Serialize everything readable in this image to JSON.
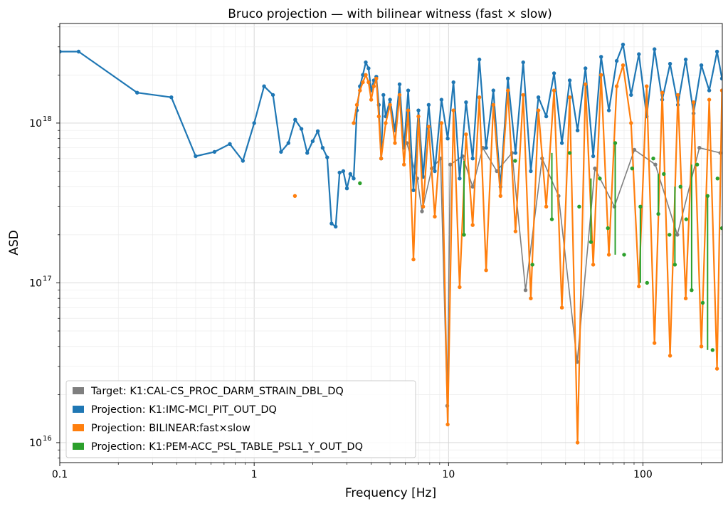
{
  "chart_data": {
    "type": "line",
    "title": "Bruco projection — with bilinear witness (fast × slow)",
    "xlabel": "Frequency [Hz]",
    "ylabel": "ASD",
    "xscale": "log",
    "yscale": "log",
    "xlim": [
      0.1,
      256
    ],
    "ylim": [
      7500000000000000.0,
      4.2e+18
    ],
    "grid": true,
    "legend_position": "lower-left",
    "x_ticks": [
      {
        "value": 0.1,
        "label": "0.1"
      },
      {
        "value": 1,
        "label": "1"
      },
      {
        "value": 10,
        "label": "10"
      },
      {
        "value": 100,
        "label": "100"
      }
    ],
    "y_ticks": [
      {
        "value": 1e+16,
        "base": "10",
        "exp": "16"
      },
      {
        "value": 1e+17,
        "base": "10",
        "exp": "17"
      },
      {
        "value": 1e+18,
        "base": "10",
        "exp": "18"
      }
    ],
    "series": [
      {
        "name": "Target: K1:CAL-CS_PROC_DARM_STRAIN_DBL_DQ",
        "color": "#7f7f7f",
        "x": [
          6.1,
          6.9,
          7.3,
          8.2,
          9.1,
          9.85,
          10.2,
          11.8,
          13.3,
          15.0,
          17.7,
          21.2,
          24.9,
          30.3,
          36.8,
          45.9,
          56.6,
          71.3,
          90.4,
          115.8,
          150.3,
          195.2,
          250.0
        ],
        "y": [
          7.5e+17,
          4.5e+17,
          2.8e+17,
          5.2e+17,
          6e+17,
          1.7e+16,
          5.5e+17,
          6.2e+17,
          4e+17,
          7e+17,
          5e+17,
          6.5e+17,
          9e+16,
          6e+17,
          3.5e+17,
          3.2e+16,
          5.2e+17,
          3e+17,
          6.8e+17,
          5.5e+17,
          2e+17,
          7e+17,
          6.5e+17
        ]
      },
      {
        "name": "Projection: K1:IMC-MCI_PIT_OUT_DQ",
        "color": "#1f77b4",
        "x": [
          0.1,
          0.125,
          0.25,
          0.375,
          0.5,
          0.625,
          0.75,
          0.875,
          1.0,
          1.125,
          1.25,
          1.375,
          1.5,
          1.625,
          1.75,
          1.875,
          2.0,
          2.125,
          2.25,
          2.375,
          2.5,
          2.625,
          2.75,
          2.875,
          3.0,
          3.125,
          3.25,
          3.375,
          3.5,
          3.625,
          3.75,
          3.875,
          4.0,
          4.125,
          4.25,
          4.375,
          4.5,
          4.625,
          4.75,
          5.0,
          5.3,
          5.6,
          5.9,
          6.2,
          6.6,
          7.0,
          7.4,
          7.9,
          8.5,
          9.2,
          9.9,
          10.6,
          11.4,
          12.3,
          13.3,
          14.4,
          15.6,
          17.0,
          18.5,
          20.2,
          22.1,
          24.2,
          26.5,
          29.0,
          31.8,
          34.9,
          38.3,
          42.0,
          46.1,
          50.6,
          55.5,
          60.9,
          66.8,
          73.3,
          79.0,
          86.9,
          95.3,
          104.5,
          114.6,
          125.7,
          137.9,
          151.3,
          166.0,
          182.1,
          199.8,
          219.2,
          240.5,
          255.0
        ],
        "y": [
          2.8e+18,
          2.8e+18,
          1.55e+18,
          1.45e+18,
          6.2e+17,
          6.6e+17,
          7.4e+17,
          5.8e+17,
          1e+18,
          1.7e+18,
          1.5e+18,
          6.6e+17,
          7.5e+17,
          1.05e+18,
          9.2e+17,
          6.5e+17,
          7.7e+17,
          8.9e+17,
          7e+17,
          6.1e+17,
          2.35e+17,
          2.25e+17,
          4.9e+17,
          5e+17,
          3.9e+17,
          4.8e+17,
          4.5e+17,
          1.2e+18,
          1.7e+18,
          2e+18,
          2.4e+18,
          2.2e+18,
          1.6e+18,
          1.85e+18,
          1.95e+18,
          1.3e+18,
          6e+17,
          1.5e+18,
          1.1e+18,
          1.4e+18,
          9e+17,
          1.75e+18,
          7e+17,
          1.6e+18,
          3.8e+17,
          1.2e+18,
          4.6e+17,
          1.3e+18,
          5e+17,
          1.4e+18,
          8e+17,
          1.8e+18,
          4.5e+17,
          1.35e+18,
          6e+17,
          2.5e+18,
          7e+17,
          1.6e+18,
          4e+17,
          1.9e+18,
          6.5e+17,
          2.4e+18,
          5e+17,
          1.45e+18,
          1.1e+18,
          2.05e+18,
          7.5e+17,
          1.85e+18,
          9e+17,
          2.2e+18,
          6.2e+17,
          2.6e+18,
          1.2e+18,
          2.45e+18,
          3.1e+18,
          1.5e+18,
          2.7e+18,
          1.1e+18,
          2.9e+18,
          1.4e+18,
          2.35e+18,
          1.3e+18,
          2.5e+18,
          1.15e+18,
          2.3e+18,
          1.6e+18,
          2.8e+18,
          1.9e+18
        ]
      },
      {
        "name": "Projection: BILINEAR:fast×slow",
        "color": "#ff7f0e",
        "x": [
          1.62,
          3.25,
          3.375,
          3.5,
          3.625,
          3.75,
          3.875,
          4.0,
          4.125,
          4.25,
          4.375,
          4.5,
          4.75,
          5.0,
          5.3,
          5.6,
          5.9,
          6.2,
          6.6,
          7.0,
          7.4,
          7.9,
          8.5,
          9.2,
          9.9,
          10.6,
          11.4,
          12.3,
          13.3,
          14.4,
          15.6,
          17.0,
          18.5,
          20.2,
          22.1,
          24.2,
          26.5,
          29.0,
          31.8,
          34.9,
          38.3,
          42.0,
          46.1,
          50.6,
          55.5,
          60.9,
          66.8,
          73.3,
          79.0,
          86.9,
          95.3,
          104.5,
          114.6,
          125.7,
          137.9,
          151.3,
          166.0,
          182.1,
          199.8,
          219.2,
          240.5,
          255.0
        ],
        "y": [
          3.5e+17,
          1e+18,
          1.3e+18,
          1.6e+18,
          1.8e+18,
          2e+18,
          1.8e+18,
          1.4e+18,
          1.7e+18,
          1.9e+18,
          1.1e+18,
          6e+17,
          1e+18,
          1.3e+18,
          7.5e+17,
          1.5e+18,
          5.5e+17,
          1.2e+18,
          1.4e+17,
          1.1e+18,
          3e+17,
          9.5e+17,
          2.6e+17,
          1e+18,
          1.3e+16,
          1.2e+18,
          9.4e+16,
          8.5e+17,
          2.3e+17,
          1.45e+18,
          1.2e+17,
          1.3e+18,
          3.5e+17,
          1.6e+18,
          2.1e+17,
          1.5e+18,
          8e+16,
          1.2e+18,
          3e+17,
          1.6e+18,
          7e+16,
          1.45e+18,
          1e+16,
          1.75e+18,
          1.3e+17,
          2e+18,
          1.5e+17,
          1.7e+18,
          2.3e+18,
          1e+18,
          9.5e+16,
          1.7e+18,
          4.2e+16,
          1.55e+18,
          3.5e+16,
          1.5e+18,
          8e+16,
          1.35e+18,
          4e+16,
          1.4e+18,
          2.9e+16,
          1.6e+18
        ]
      },
      {
        "name": "Projection: K1:PEM-ACC_PSL_TABLE_PSL1_Y_OUT_DQ",
        "color": "#2ca02c",
        "x": [
          3.5,
          12.0,
          22.0,
          27.0,
          34.0,
          42.0,
          47.0,
          54.0,
          60.0,
          66.0,
          72.0,
          80.0,
          88.0,
          97.0,
          105.0,
          113.0,
          120.0,
          128.0,
          137.0,
          146.0,
          156.0,
          167.0,
          178.0,
          190.0,
          203.0,
          215.0,
          228.0,
          242.0,
          255.0
        ],
        "y": [
          4.2e+17,
          2e+17,
          5.8e+17,
          1.3e+17,
          2.5e+17,
          6.5e+17,
          3e+17,
          1.8e+17,
          4.5e+17,
          2.2e+17,
          7.5e+17,
          1.5e+17,
          5.2e+17,
          3e+17,
          1e+17,
          6e+17,
          2.7e+17,
          4.8e+17,
          2e+17,
          1.3e+17,
          4e+17,
          2.5e+17,
          9e+16,
          5.5e+17,
          7.5e+16,
          3.5e+17,
          3.8e+16,
          4.5e+17,
          2.2e+17
        ]
      }
    ]
  }
}
